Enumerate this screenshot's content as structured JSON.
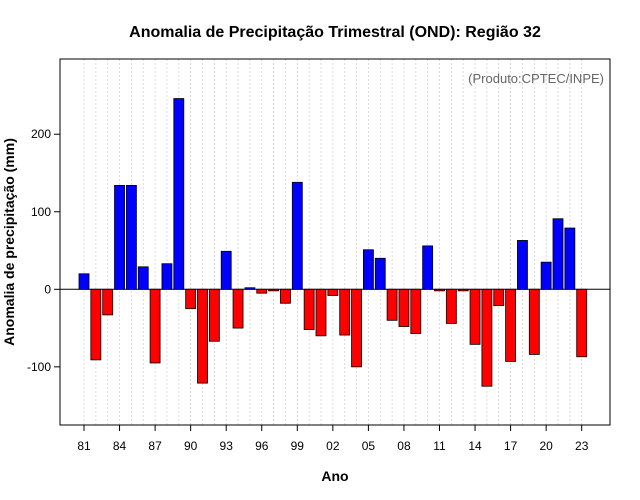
{
  "chart_data": {
    "type": "bar",
    "title": "Anomalia de Precipitação Trimestral (OND): Região 32",
    "xlabel": "Ano",
    "ylabel": "Anomalia de precipitação (mm)",
    "credit": "(Produto:CPTEC/INPE)",
    "ylim": [
      -175,
      297
    ],
    "yticks": [
      -100,
      0,
      100,
      200
    ],
    "years": [
      1981,
      1982,
      1983,
      1984,
      1985,
      1986,
      1987,
      1988,
      1989,
      1990,
      1991,
      1992,
      1993,
      1994,
      1995,
      1996,
      1997,
      1998,
      1999,
      2000,
      2001,
      2002,
      2003,
      2004,
      2005,
      2006,
      2007,
      2008,
      2009,
      2010,
      2011,
      2012,
      2013,
      2014,
      2015,
      2016,
      2017,
      2018,
      2019,
      2020,
      2021,
      2022,
      2023
    ],
    "tick_labels": [
      "81",
      "84",
      "87",
      "90",
      "93",
      "96",
      "99",
      "02",
      "05",
      "08",
      "11",
      "14",
      "17",
      "20",
      "23"
    ],
    "values": [
      20,
      -91,
      -33,
      134,
      134,
      29,
      -95,
      33,
      246,
      -25,
      -121,
      -67,
      49,
      -50,
      2,
      -5,
      -2,
      -18,
      138,
      -52,
      -60,
      -8,
      -59,
      -100,
      51,
      40,
      -40,
      -48,
      -57,
      56,
      -2,
      -44,
      -2,
      -71,
      -125,
      -21,
      -93,
      63,
      -84,
      35,
      91,
      79,
      -87
    ],
    "colors": {
      "positive": "#0000ff",
      "negative": "#ff0000",
      "zero_line": "#000000",
      "grid": "#d3d3d3"
    }
  }
}
